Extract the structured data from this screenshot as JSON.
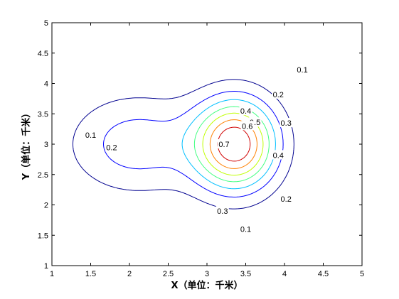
{
  "chart_data": {
    "type": "contour",
    "title": "",
    "xlabel": "X（单位：千米）",
    "ylabel": "Y（单位：千米）",
    "xlim": [
      1,
      5
    ],
    "ylim": [
      1,
      5
    ],
    "xticks": [
      "1",
      "1.5",
      "2",
      "2.5",
      "3",
      "3.5",
      "4",
      "4.5",
      "5"
    ],
    "yticks": [
      "1",
      "1.5",
      "2",
      "2.5",
      "3",
      "3.5",
      "4",
      "4.5",
      "5"
    ],
    "grid": false,
    "levels": [
      {
        "level": "0.1",
        "color": "#00008f",
        "labels": [
          {
            "x": 4.23,
            "y": 4.23
          },
          {
            "x": 1.5,
            "y": 3.15
          },
          {
            "x": 3.5,
            "y": 1.6
          }
        ]
      },
      {
        "level": "0.2",
        "color": "#0000ff",
        "labels": [
          {
            "x": 3.92,
            "y": 3.82
          },
          {
            "x": 1.77,
            "y": 2.95
          },
          {
            "x": 4.02,
            "y": 2.1
          }
        ]
      },
      {
        "level": "0.3",
        "color": "#00bfff",
        "labels": [
          {
            "x": 4.02,
            "y": 3.35
          },
          {
            "x": 3.2,
            "y": 1.9
          }
        ]
      },
      {
        "level": "0.4",
        "color": "#40ff80",
        "labels": [
          {
            "x": 3.5,
            "y": 3.55
          },
          {
            "x": 3.92,
            "y": 2.82
          }
        ]
      },
      {
        "level": "0.5",
        "color": "#c0ff00",
        "labels": [
          {
            "x": 3.62,
            "y": 3.36
          }
        ]
      },
      {
        "level": "0.6",
        "color": "#ff8000",
        "labels": [
          {
            "x": 3.52,
            "y": 3.3
          }
        ]
      },
      {
        "level": "0.7",
        "color": "#d00000",
        "labels": [
          {
            "x": 3.22,
            "y": 3.0
          }
        ]
      }
    ]
  }
}
